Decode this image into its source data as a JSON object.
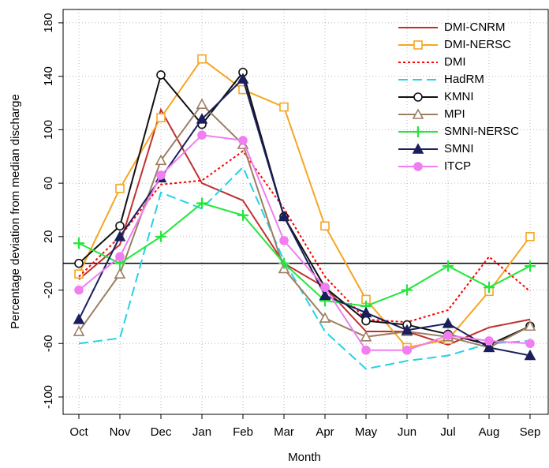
{
  "chart_data": {
    "type": "line",
    "x_label": "Month",
    "y_label": "Percentage deviation from median discharge",
    "categories": [
      "Oct",
      "Nov",
      "Dec",
      "Jan",
      "Feb",
      "Mar",
      "Apr",
      "May",
      "Jun",
      "Jul",
      "Aug",
      "Sep"
    ],
    "ylim": [
      -113,
      190
    ],
    "yticks": [
      -100,
      -60,
      -20,
      20,
      60,
      100,
      140,
      180
    ],
    "grid": true,
    "reference_line": 0,
    "legend": "top-right",
    "series": [
      {
        "name": "DMI-CNRM",
        "color": "#c0302f",
        "dash": "solid",
        "marker": "none",
        "values": [
          -12,
          14,
          115,
          60,
          47,
          0,
          -18,
          -51,
          -51,
          -61,
          -48,
          -42
        ]
      },
      {
        "name": "DMI-NERSC",
        "color": "#f5a623",
        "dash": "solid",
        "marker": "square-open",
        "values": [
          -8,
          56,
          109,
          153,
          130,
          117,
          28,
          -27,
          -63,
          -57,
          -21,
          20
        ]
      },
      {
        "name": "DMI",
        "color": "#ff0000",
        "dash": "dotted",
        "marker": "none",
        "values": [
          -10,
          20,
          59,
          62,
          84,
          41,
          -10,
          -42,
          -44,
          -35,
          5,
          -21
        ]
      },
      {
        "name": "HadRM",
        "color": "#22d3e6",
        "dash": "dashed",
        "marker": "none",
        "values": [
          -60,
          -56,
          53,
          41,
          72,
          2,
          -51,
          -79,
          -73,
          -69,
          -60,
          -58
        ]
      },
      {
        "name": "KMNI",
        "color": "#111111",
        "dash": "solid",
        "marker": "circle-open",
        "values": [
          0,
          28,
          141,
          104,
          143,
          35,
          -18,
          -43,
          -46,
          -53,
          -61,
          -47
        ]
      },
      {
        "name": "MPI",
        "color": "#9c7e62",
        "dash": "solid",
        "marker": "triangle-open",
        "values": [
          -51,
          -8,
          77,
          119,
          89,
          -4,
          -41,
          -55,
          -51,
          -55,
          -63,
          -47
        ]
      },
      {
        "name": "SMNI-NERSC",
        "color": "#22e63a",
        "dash": "solid",
        "marker": "plus",
        "values": [
          15,
          0,
          20,
          45,
          36,
          0,
          -28,
          -32,
          -20,
          -2,
          -18,
          -2
        ]
      },
      {
        "name": "SMNI",
        "color": "#1a1f5c",
        "dash": "solid",
        "marker": "triangle-filled",
        "values": [
          -42,
          20,
          64,
          108,
          138,
          35,
          -24,
          -37,
          -50,
          -45,
          -63,
          -69
        ]
      },
      {
        "name": "ITCP",
        "color": "#f07ef0",
        "dash": "solid",
        "marker": "circle-filled",
        "values": [
          -20,
          5,
          66,
          96,
          92,
          17,
          -18,
          -65,
          -65,
          -54,
          -58,
          -60
        ]
      }
    ]
  }
}
